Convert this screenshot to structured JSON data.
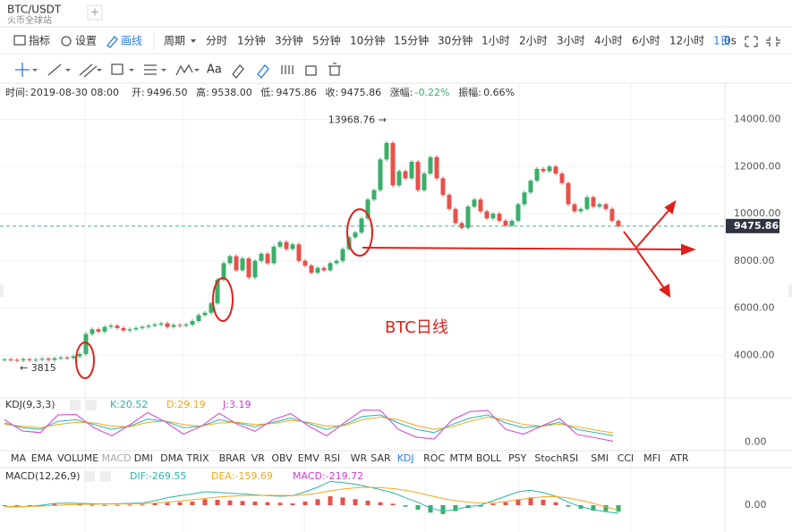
{
  "header": {
    "symbol": "BTC/USDT",
    "exchange": "火币全球站",
    "add_tab": "+"
  },
  "toolbar": {
    "indicators": "指标",
    "settings": "设置",
    "draw": "画线",
    "period": "周期",
    "periods": [
      "分时",
      "1分钟",
      "3分钟",
      "5分钟",
      "10分钟",
      "15分钟",
      "30分钟",
      "1小时",
      "2小时",
      "3小时",
      "4小时",
      "6小时",
      "12小时",
      "1日"
    ],
    "active_period": "1日",
    "countdown": "0s",
    "font_tool": "Aa"
  },
  "info": [
    {
      "label": "时间:",
      "value": "2019-08-30 08:00"
    },
    {
      "label": "开:",
      "value": "9496.50"
    },
    {
      "label": "高:",
      "value": "9538.00"
    },
    {
      "label": "低:",
      "value": "9475.86"
    },
    {
      "label": "收:",
      "value": "9475.86"
    },
    {
      "label": "涨幅:",
      "value": "-0.22%"
    },
    {
      "label": "振幅:",
      "value": "0.66%"
    }
  ],
  "price_chart": {
    "type": "candlestick",
    "ylim": [
      2190,
      15460
    ],
    "yticks": [
      {
        "value": 4000,
        "label": "4000.00"
      },
      {
        "value": 6000,
        "label": "6000.00"
      },
      {
        "value": 8000,
        "label": "8000.00"
      },
      {
        "value": 10000,
        "label": "10000.00"
      },
      {
        "value": 12000,
        "label": "12000.00"
      },
      {
        "value": 14000,
        "label": "14000.00"
      }
    ],
    "current_price": {
      "value": 9475.86,
      "label": "9475.86"
    },
    "high_annotation": {
      "value": 13968.76,
      "label": "13968.76 →"
    },
    "low_annotation": {
      "value": 3815,
      "label": "← 3815"
    },
    "caption": "BTC日线",
    "up_color": "#3aaf6a",
    "down_color": "#e8504a",
    "closes": [
      3820,
      3800,
      3780,
      3830,
      3790,
      3810,
      3850,
      3800,
      3870,
      3900,
      3880,
      3950,
      4050,
      4900,
      5100,
      5000,
      5200,
      5250,
      5150,
      5050,
      5100,
      5150,
      5200,
      5250,
      5300,
      5350,
      5200,
      5280,
      5250,
      5300,
      5450,
      5700,
      5800,
      6200,
      7200,
      7900,
      8200,
      7600,
      8100,
      7300,
      8000,
      8300,
      7900,
      8600,
      8800,
      8500,
      8700,
      8000,
      7800,
      7500,
      7700,
      7600,
      7900,
      8000,
      8500,
      9000,
      9200,
      9800,
      10600,
      11000,
      12300,
      13000,
      11200,
      11800,
      11500,
      12200,
      11000,
      11700,
      12400,
      11500,
      10800,
      10200,
      9600,
      9400,
      10300,
      10600,
      10100,
      9800,
      10000,
      9700,
      9500,
      9700,
      10400,
      10900,
      11400,
      11900,
      11800,
      12000,
      11700,
      11300,
      10400,
      10100,
      10200,
      10700,
      10300,
      10400,
      10200,
      9700,
      9475.86
    ]
  },
  "kdj": {
    "title": "KDJ(9,3,3)",
    "ylim": [
      -15,
      110
    ],
    "yticks": [
      {
        "value": 0,
        "label": "0.00"
      }
    ],
    "series": [
      {
        "name": "K:20.52",
        "color": "#26b6b0",
        "values": [
          60,
          45,
          40,
          65,
          70,
          55,
          40,
          50,
          72,
          65,
          45,
          50,
          70,
          60,
          48,
          62,
          75,
          58,
          40,
          55,
          80,
          85,
          60,
          40,
          30,
          55,
          75,
          85,
          60,
          45,
          50,
          62,
          40,
          30,
          20.52
        ]
      },
      {
        "name": "D:29.19",
        "color": "#f0a81c",
        "values": [
          55,
          50,
          45,
          55,
          62,
          60,
          50,
          48,
          62,
          66,
          55,
          50,
          60,
          62,
          55,
          58,
          68,
          62,
          50,
          52,
          70,
          78,
          70,
          52,
          40,
          48,
          65,
          78,
          70,
          55,
          50,
          56,
          48,
          38,
          29.19
        ]
      },
      {
        "name": "J:3.19",
        "color": "#d23ad2",
        "values": [
          70,
          35,
          30,
          85,
          86,
          45,
          20,
          54,
          92,
          63,
          25,
          50,
          90,
          56,
          34,
          70,
          89,
          50,
          20,
          61,
          100,
          99,
          40,
          16,
          10,
          69,
          95,
          99,
          40,
          25,
          50,
          74,
          24,
          14,
          3.19
        ]
      }
    ]
  },
  "indicator_tabs": {
    "items": [
      "MA",
      "EMA",
      "VOLUME",
      "MACD",
      "DMI",
      "DMA",
      "TRIX",
      "BRAR",
      "VR",
      "OBV",
      "EMV",
      "RSI",
      "WR",
      "SAR",
      "KDJ",
      "ROC",
      "MTM",
      "BOLL",
      "PSY",
      "StochRSI",
      "SMI",
      "CCI",
      "MFI",
      "ATR"
    ],
    "active": "KDJ",
    "disabled": "MACD"
  },
  "macd": {
    "title": "MACD(12,26,9)",
    "ylim": [
      -900,
      900
    ],
    "yticks": [
      {
        "value": 0,
        "label": "0.00"
      }
    ],
    "up_color": "#e8504a",
    "down_color": "#3aaf6a",
    "series": [
      {
        "name": "DIF:-269.55",
        "color": "#26b6b0",
        "values": [
          -50,
          -60,
          -40,
          0,
          60,
          70,
          60,
          50,
          40,
          50,
          60,
          70,
          150,
          250,
          320,
          380,
          450,
          430,
          400,
          380,
          350,
          320,
          300,
          320,
          450,
          600,
          800,
          760,
          700,
          620,
          520,
          420,
          250,
          100,
          -100,
          -200,
          -150,
          -50,
          0,
          150,
          300,
          450,
          500,
          420,
          300,
          100,
          -50,
          -150,
          -220,
          -269.55
        ]
      },
      {
        "name": "DEA:-159.69",
        "color": "#f0a81c",
        "values": [
          -40,
          -45,
          -42,
          -30,
          -10,
          10,
          25,
          35,
          38,
          42,
          46,
          50,
          70,
          100,
          140,
          180,
          230,
          270,
          300,
          320,
          330,
          330,
          325,
          323,
          350,
          400,
          480,
          540,
          580,
          600,
          590,
          560,
          500,
          420,
          320,
          220,
          150,
          100,
          70,
          80,
          120,
          180,
          240,
          280,
          290,
          240,
          160,
          60,
          -60,
          -159.69
        ]
      },
      {
        "name": "MACD:-219.72",
        "color": "#d23ad2",
        "values": [
          -20,
          -30,
          -10,
          10,
          40,
          30,
          20,
          10,
          5,
          10,
          15,
          20,
          60,
          80,
          100,
          120,
          200,
          180,
          160,
          140,
          120,
          100,
          80,
          60,
          120,
          200,
          300,
          260,
          200,
          150,
          100,
          50,
          -50,
          -150,
          -250,
          -300,
          -200,
          -100,
          -50,
          50,
          100,
          200,
          260,
          180,
          100,
          -50,
          -120,
          -180,
          -200,
          -219.72
        ]
      }
    ]
  }
}
